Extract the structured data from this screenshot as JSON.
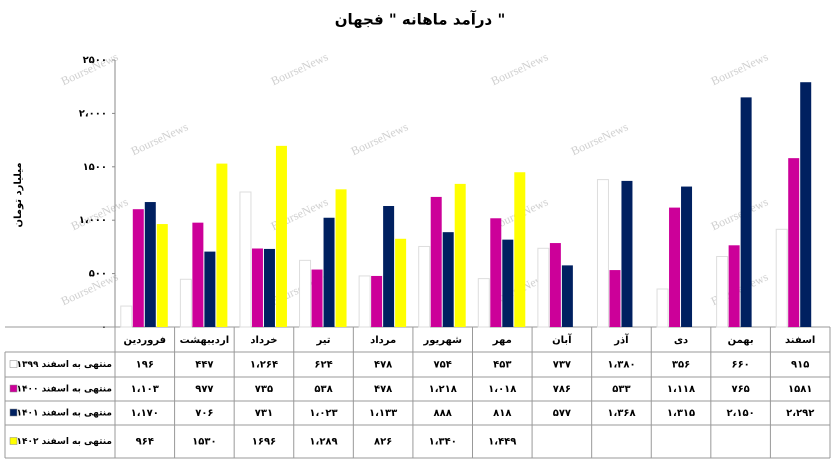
{
  "chart_data": {
    "type": "bar",
    "title": "درآمد ماهانه \" فجهان \"",
    "y_label": "میلیارد تومان",
    "watermark": "BourseNews",
    "categories": [
      "فروردین",
      "اردیبهشت",
      "خرداد",
      "تیر",
      "مرداد",
      "شهریور",
      "مهر",
      "آبان",
      "آذر",
      "دی",
      "بهمن",
      "اسفند"
    ],
    "series": [
      {
        "name": "منتهی به اسفند ۱۳۹۹",
        "color": "#ffffff",
        "values": [
          196,
          447,
          1264,
          624,
          478,
          754,
          453,
          737,
          1380,
          356,
          660,
          915
        ],
        "value_labels": [
          "۱۹۶",
          "۴۴۷",
          "۱،۲۶۴",
          "۶۲۴",
          "۴۷۸",
          "۷۵۴",
          "۴۵۳",
          "۷۳۷",
          "۱،۳۸۰",
          "۳۵۶",
          "۶۶۰",
          "۹۱۵"
        ]
      },
      {
        "name": "منتهی به اسفند ۱۴۰۰",
        "color": "#cc0099",
        "values": [
          1103,
          977,
          735,
          538,
          478,
          1218,
          1018,
          786,
          533,
          1118,
          765,
          1581
        ],
        "value_labels": [
          "۱،۱۰۳",
          "۹۷۷",
          "۷۳۵",
          "۵۳۸",
          "۴۷۸",
          "۱،۲۱۸",
          "۱،۰۱۸",
          "۷۸۶",
          "۵۳۳",
          "۱،۱۱۸",
          "۷۶۵",
          "۱۵۸۱"
        ]
      },
      {
        "name": "منتهی به اسفند ۱۴۰۱",
        "color": "#002060",
        "values": [
          1170,
          706,
          731,
          1023,
          1133,
          888,
          818,
          577,
          1368,
          1315,
          2150,
          2292
        ],
        "value_labels": [
          "۱،۱۷۰",
          "۷۰۶",
          "۷۳۱",
          "۱،۰۲۳",
          "۱،۱۳۳",
          "۸۸۸",
          "۸۱۸",
          "۵۷۷",
          "۱،۳۶۸",
          "۱،۳۱۵",
          "۲،۱۵۰",
          "۲،۲۹۲"
        ]
      },
      {
        "name": "منتهی به اسفند ۱۴۰۲",
        "color": "#ffff00",
        "values": [
          964,
          1530,
          1696,
          1289,
          826,
          1340,
          1449,
          null,
          null,
          null,
          null,
          null
        ],
        "value_labels": [
          "۹۶۴",
          "۱۵۳۰",
          "۱۶۹۶",
          "۱،۲۸۹",
          "۸۲۶",
          "۱،۳۴۰",
          "۱،۴۴۹",
          null,
          null,
          null,
          null,
          null
        ]
      }
    ],
    "ylim": [
      0,
      2500
    ],
    "yticks": [
      {
        "value": 0,
        "label": "۰"
      },
      {
        "value": 500,
        "label": "۵۰۰"
      },
      {
        "value": 1000,
        "label": "۱،۰۰۰"
      },
      {
        "value": 1500,
        "label": "۱۵۰۰"
      },
      {
        "value": 2000,
        "label": "۲،۰۰۰"
      },
      {
        "value": 2500,
        "label": "۲۵۰۰"
      }
    ]
  }
}
